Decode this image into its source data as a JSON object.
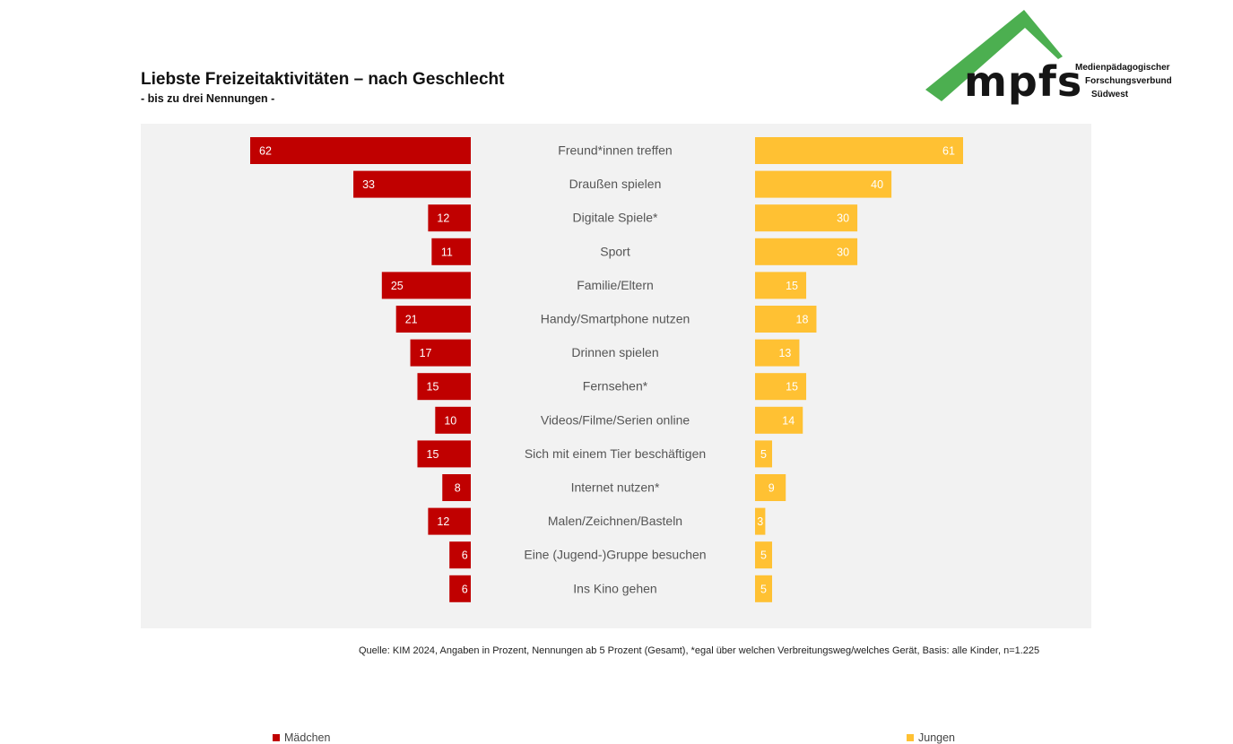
{
  "header": {
    "title": "Liebste Freizeitaktivitäten – nach Geschlecht",
    "subtitle": "- bis zu drei Nennungen -"
  },
  "logo": {
    "wordmark": "mpfs",
    "line1": "Medienpädagogischer",
    "line2": "Forschungsverbund",
    "line3": "Südwest",
    "color_green": "#4caf50"
  },
  "chart_data": {
    "type": "bar",
    "orientation": "horizontal-butterfly",
    "categories": [
      "Freund*innen treffen",
      "Draußen spielen",
      "Digitale Spiele*",
      "Sport",
      "Familie/Eltern",
      "Handy/Smartphone nutzen",
      "Drinnen spielen",
      "Fernsehen*",
      "Videos/Filme/Serien online",
      "Sich mit einem Tier beschäftigen",
      "Internet nutzen*",
      "Malen/Zeichnen/Basteln",
      "Eine (Jugend-)Gruppe besuchen",
      "Ins Kino gehen"
    ],
    "series": [
      {
        "name": "Mädchen",
        "color": "#c00000",
        "values": [
          62,
          33,
          12,
          11,
          25,
          21,
          17,
          15,
          10,
          15,
          8,
          12,
          6,
          6
        ]
      },
      {
        "name": "Jungen",
        "color": "#ffc133",
        "values": [
          61,
          40,
          30,
          30,
          15,
          18,
          13,
          15,
          14,
          5,
          9,
          3,
          5,
          5
        ]
      }
    ],
    "legend_position": "bottom",
    "background": "#f2f2f2"
  },
  "source": "Quelle: KIM 2024, Angaben in Prozent, Nennungen ab 5 Prozent (Gesamt), *egal über welchen Verbreitungsweg/welches Gerät, Basis: alle Kinder, n=1.225"
}
